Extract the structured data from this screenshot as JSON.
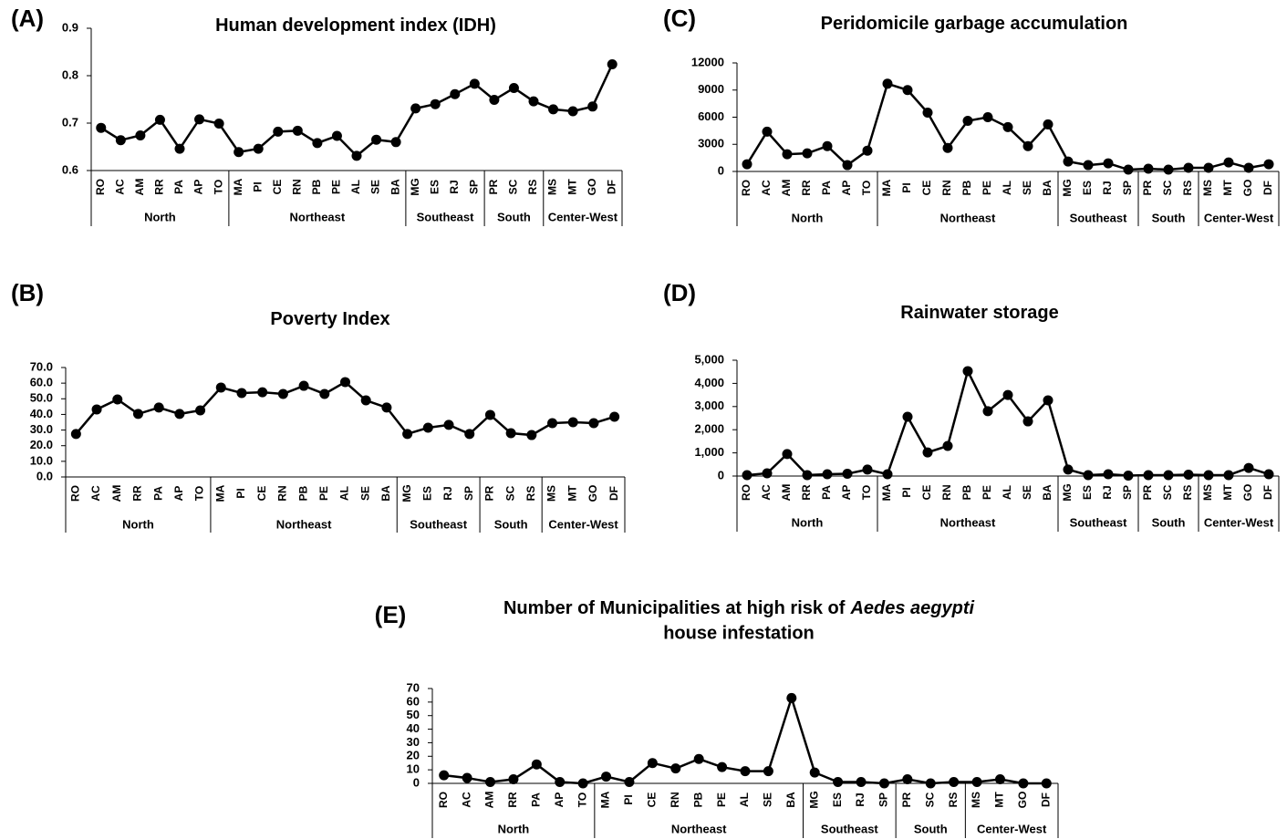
{
  "chart_data": [
    {
      "type": "line",
      "panel_label": "(A)",
      "title": "Human development index (IDH)",
      "color": "#000000",
      "grid": false,
      "groups": [
        {
          "name": "North",
          "categories": [
            "RO",
            "AC",
            "AM",
            "RR",
            "PA",
            "AP",
            "TO"
          ]
        },
        {
          "name": "Northeast",
          "categories": [
            "MA",
            "PI",
            "CE",
            "RN",
            "PB",
            "PE",
            "AL",
            "SE",
            "BA"
          ]
        },
        {
          "name": "Southeast",
          "categories": [
            "MG",
            "ES",
            "RJ",
            "SP"
          ]
        },
        {
          "name": "South",
          "categories": [
            "PR",
            "SC",
            "RS"
          ]
        },
        {
          "name": "Center-West",
          "categories": [
            "MS",
            "MT",
            "GO",
            "DF"
          ]
        }
      ],
      "values": [
        0.69,
        0.664,
        0.674,
        0.707,
        0.646,
        0.708,
        0.699,
        0.639,
        0.646,
        0.682,
        0.684,
        0.658,
        0.673,
        0.631,
        0.665,
        0.66,
        0.731,
        0.74,
        0.761,
        0.783,
        0.749,
        0.774,
        0.746,
        0.729,
        0.725,
        0.735,
        0.824
      ],
      "ylim": [
        0.6,
        0.9
      ],
      "yticks": [
        0.6,
        0.7,
        0.8,
        0.9
      ]
    },
    {
      "type": "line",
      "panel_label": "(B)",
      "title": "Poverty Index",
      "color": "#000000",
      "grid": false,
      "groups": [
        {
          "name": "North",
          "categories": [
            "RO",
            "AC",
            "AM",
            "RR",
            "PA",
            "AP",
            "TO"
          ]
        },
        {
          "name": "Northeast",
          "categories": [
            "MA",
            "PI",
            "CE",
            "RN",
            "PB",
            "PE",
            "AL",
            "SE",
            "BA"
          ]
        },
        {
          "name": "Southeast",
          "categories": [
            "MG",
            "ES",
            "RJ",
            "SP"
          ]
        },
        {
          "name": "South",
          "categories": [
            "PR",
            "SC",
            "RS"
          ]
        },
        {
          "name": "Center-West",
          "categories": [
            "MS",
            "MT",
            "GO",
            "DF"
          ]
        }
      ],
      "values": [
        27.5,
        43.2,
        49.6,
        40.3,
        44.4,
        40.3,
        42.6,
        57.2,
        53.7,
        54.2,
        53.1,
        58.3,
        53.1,
        60.7,
        49.0,
        44.4,
        27.5,
        31.5,
        33.3,
        27.5,
        39.7,
        28.0,
        26.8,
        34.4,
        35.0,
        34.4,
        38.5
      ],
      "ylim": [
        0,
        70
      ],
      "yticks": [
        {
          "value": 0,
          "label": "0.0"
        },
        {
          "value": 10,
          "label": "10.0"
        },
        {
          "value": 20,
          "label": "20.0"
        },
        {
          "value": 30,
          "label": "30.0"
        },
        {
          "value": 40,
          "label": "40.0"
        },
        {
          "value": 50,
          "label": "50.0"
        },
        {
          "value": 60,
          "label": "60.0"
        },
        {
          "value": 70,
          "label": "70.0"
        }
      ]
    },
    {
      "type": "line",
      "panel_label": "(C)",
      "title": "Peridomicile garbage accumulation",
      "color": "#000000",
      "grid": false,
      "groups": [
        {
          "name": "North",
          "categories": [
            "RO",
            "AC",
            "AM",
            "RR",
            "PA",
            "AP",
            "TO"
          ]
        },
        {
          "name": "Northeast",
          "categories": [
            "MA",
            "PI",
            "CE",
            "RN",
            "PB",
            "PE",
            "AL",
            "SE",
            "BA"
          ]
        },
        {
          "name": "Southeast",
          "categories": [
            "MG",
            "ES",
            "RJ",
            "SP"
          ]
        },
        {
          "name": "South",
          "categories": [
            "PR",
            "SC",
            "RS"
          ]
        },
        {
          "name": "Center-West",
          "categories": [
            "MS",
            "MT",
            "GO",
            "DF"
          ]
        }
      ],
      "values": [
        800,
        4400,
        1900,
        2000,
        2800,
        700,
        2300,
        9700,
        9000,
        6500,
        2600,
        5600,
        6000,
        4900,
        2800,
        5200,
        1100,
        700,
        900,
        200,
        300,
        200,
        400,
        400,
        1000,
        400,
        800
      ],
      "ylim": [
        0,
        12000
      ],
      "yticks": [
        0,
        3000,
        6000,
        9000,
        12000
      ]
    },
    {
      "type": "line",
      "panel_label": "(D)",
      "title": "Rainwater storage",
      "color": "#000000",
      "grid": false,
      "groups": [
        {
          "name": "North",
          "categories": [
            "RO",
            "AC",
            "AM",
            "RR",
            "PA",
            "AP",
            "TO"
          ]
        },
        {
          "name": "Northeast",
          "categories": [
            "MA",
            "PI",
            "CE",
            "RN",
            "PB",
            "PE",
            "AL",
            "SE",
            "BA"
          ]
        },
        {
          "name": "Southeast",
          "categories": [
            "MG",
            "ES",
            "RJ",
            "SP"
          ]
        },
        {
          "name": "South",
          "categories": [
            "PR",
            "SC",
            "RS"
          ]
        },
        {
          "name": "Center-West",
          "categories": [
            "MS",
            "MT",
            "GO",
            "DF"
          ]
        }
      ],
      "values": [
        40,
        120,
        950,
        40,
        80,
        100,
        280,
        80,
        2560,
        1020,
        1300,
        4530,
        2800,
        3500,
        2360,
        3270,
        280,
        40,
        80,
        20,
        40,
        40,
        60,
        40,
        40,
        350,
        80
      ],
      "ylim": [
        0,
        5000
      ],
      "yticks": [
        0,
        {
          "value": 1000,
          "label": "1,000"
        },
        {
          "value": 2000,
          "label": "2,000"
        },
        {
          "value": 3000,
          "label": "3,000"
        },
        {
          "value": 4000,
          "label": "4,000"
        },
        {
          "value": 5000,
          "label": "5,000"
        }
      ]
    },
    {
      "type": "line",
      "panel_label": "(E)",
      "title": "Number of Municipalities at high risk of",
      "title_italic": "Aedes aegypti",
      "title_line2": "house infestation",
      "color": "#000000",
      "grid": false,
      "groups": [
        {
          "name": "North",
          "categories": [
            "RO",
            "AC",
            "AM",
            "RR",
            "PA",
            "AP",
            "TO"
          ]
        },
        {
          "name": "Northeast",
          "categories": [
            "MA",
            "PI",
            "CE",
            "RN",
            "PB",
            "PE",
            "AL",
            "SE",
            "BA"
          ]
        },
        {
          "name": "Southeast",
          "categories": [
            "MG",
            "ES",
            "RJ",
            "SP"
          ]
        },
        {
          "name": "South",
          "categories": [
            "PR",
            "SC",
            "RS"
          ]
        },
        {
          "name": "Center-West",
          "categories": [
            "MS",
            "MT",
            "GO",
            "DF"
          ]
        }
      ],
      "values": [
        6,
        4,
        1,
        3,
        14,
        1,
        0,
        5,
        1,
        15,
        11,
        18,
        12,
        9,
        9,
        63,
        8,
        1,
        1,
        0,
        3,
        0,
        1,
        1,
        3,
        0,
        0
      ],
      "ylim": [
        0,
        70
      ],
      "yticks": [
        0,
        10,
        20,
        30,
        40,
        50,
        60,
        70
      ]
    }
  ]
}
